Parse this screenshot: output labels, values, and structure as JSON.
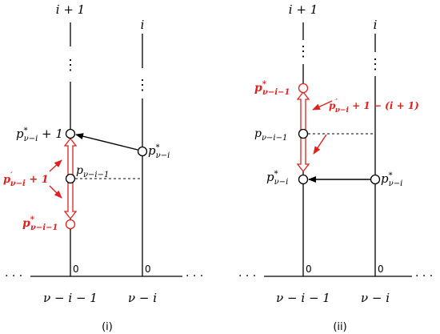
{
  "colors": {
    "black": "#000000",
    "red": "#e02020"
  },
  "panel_i": {
    "caption": "(i)",
    "col_left_top": "i + 1",
    "col_right_top": "i",
    "axis_left": "ν − i − 1",
    "axis_right": "ν − i",
    "zero": "0",
    "dots": "⋮",
    "ellipsis": "· · ·",
    "label_left_upper": {
      "base": "p",
      "sup": "*",
      "sub": "ν−i",
      "tail": " + 1"
    },
    "label_left_mid": {
      "base": "p",
      "sub": "ν−i−1"
    },
    "label_right": {
      "base": "p",
      "sup": "*",
      "sub": "ν−i"
    },
    "red_bottom": {
      "base": "p",
      "sup": "*",
      "sub": "ν−i−1"
    },
    "red_annotation": {
      "base": "p",
      "sup": "′",
      "sub": "ν−i",
      "tail": " + 1"
    }
  },
  "panel_ii": {
    "caption": "(ii)",
    "col_left_top": "i + 1",
    "col_right_top": "i",
    "axis_left": "ν − i − 1",
    "axis_right": "ν − i",
    "zero": "0",
    "dots": "⋮",
    "ellipsis": "· · ·",
    "red_top": {
      "base": "p",
      "sup": "*",
      "sub": "ν−i−1"
    },
    "label_left_mid": {
      "base": "p",
      "sub": "ν−i−1"
    },
    "label_left_lower": {
      "base": "p",
      "sup": "*",
      "sub": "ν−i"
    },
    "label_right": {
      "base": "p",
      "sup": "*",
      "sub": "ν−i"
    },
    "red_annotation": {
      "base": "p",
      "sup": "′",
      "sub": "ν−i",
      "tail": " + 1 − (i + 1)"
    }
  }
}
